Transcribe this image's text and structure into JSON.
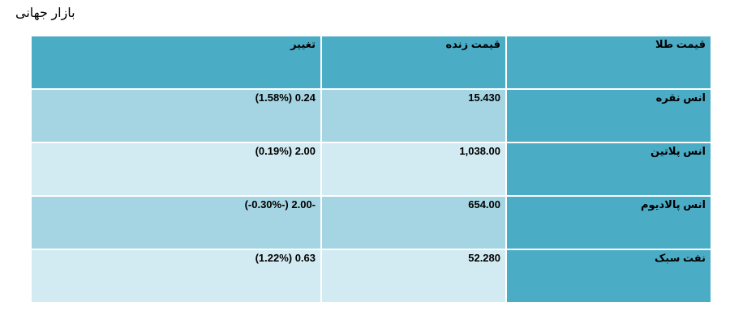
{
  "page": {
    "title": "بازار جهانی"
  },
  "table": {
    "headers": {
      "change": "تغییر",
      "live_price": "قیمت زنده",
      "gold_price": "قیمت طلا"
    },
    "rows": [
      {
        "name": "انس نقره",
        "price": "15.430",
        "change": "(1.58%) 0.24"
      },
      {
        "name": "انس پلاتین",
        "price": "1,038.00",
        "change": "(0.19%) 2.00"
      },
      {
        "name": "انس پالادیوم",
        "price": "654.00",
        "change": "(-0.30%-) 2.00-"
      },
      {
        "name": "نفت سبک",
        "price": "52.280",
        "change": "(1.22%) 0.63"
      }
    ]
  },
  "colors": {
    "header": "#4bacc6",
    "name_cell": "#4bacc6",
    "row_odd": "#a5d5e2",
    "row_even": "#d2eaf1"
  }
}
